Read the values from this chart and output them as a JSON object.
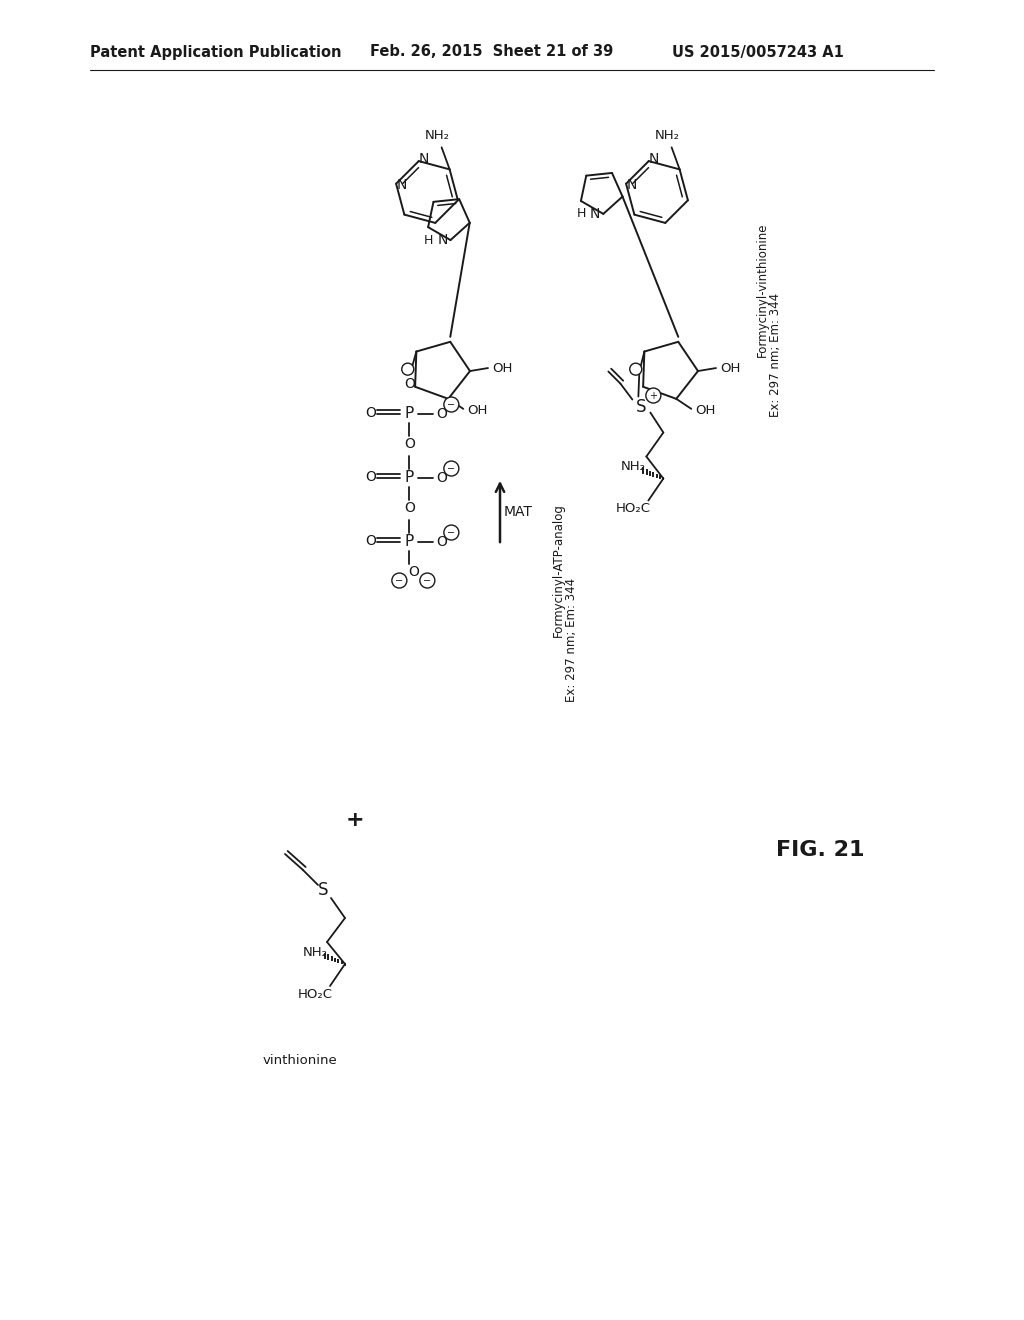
{
  "header_left": "Patent Application Publication",
  "header_mid": "Feb. 26, 2015  Sheet 21 of 39",
  "header_right": "US 2015/0057243 A1",
  "fig_label": "FIG. 21",
  "background_color": "#ffffff",
  "text_color": "#1a1a1a",
  "line_color": "#1a1a1a"
}
